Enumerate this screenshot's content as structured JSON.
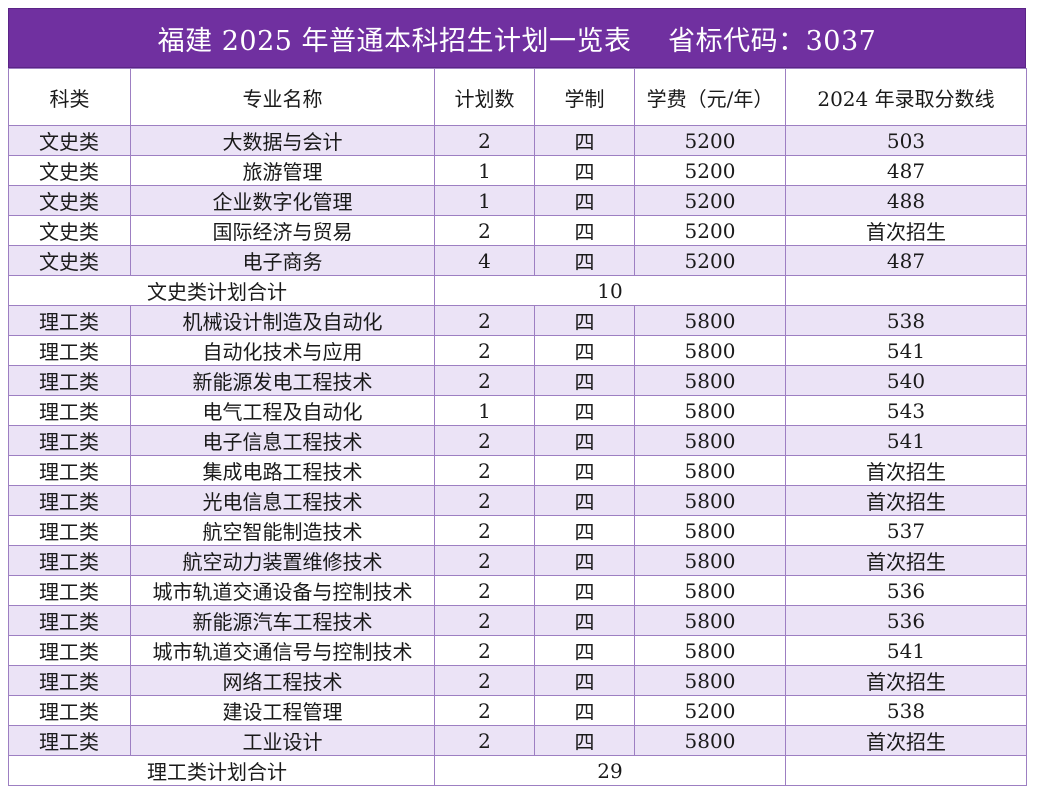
{
  "title": "福建 2025 年普通本科招生计划一览表　 省标代码：3037",
  "headers": [
    "科类",
    "专业名称",
    "计划数",
    "学制",
    "学费（元/年）",
    "2024 年录取分数线"
  ],
  "groups": [
    {
      "rows": [
        [
          "文史类",
          "大数据与会计",
          "2",
          "四",
          "5200",
          "503"
        ],
        [
          "文史类",
          "旅游管理",
          "1",
          "四",
          "5200",
          "487"
        ],
        [
          "文史类",
          "企业数字化管理",
          "1",
          "四",
          "5200",
          "488"
        ],
        [
          "文史类",
          "国际经济与贸易",
          "2",
          "四",
          "5200",
          "首次招生"
        ],
        [
          "文史类",
          "电子商务",
          "4",
          "四",
          "5200",
          "487"
        ]
      ],
      "subtotal_label": "文史类计划合计",
      "subtotal_value": "10"
    },
    {
      "rows": [
        [
          "理工类",
          "机械设计制造及自动化",
          "2",
          "四",
          "5800",
          "538"
        ],
        [
          "理工类",
          "自动化技术与应用",
          "2",
          "四",
          "5800",
          "541"
        ],
        [
          "理工类",
          "新能源发电工程技术",
          "2",
          "四",
          "5800",
          "540"
        ],
        [
          "理工类",
          "电气工程及自动化",
          "1",
          "四",
          "5800",
          "543"
        ],
        [
          "理工类",
          "电子信息工程技术",
          "2",
          "四",
          "5800",
          "541"
        ],
        [
          "理工类",
          "集成电路工程技术",
          "2",
          "四",
          "5800",
          "首次招生"
        ],
        [
          "理工类",
          "光电信息工程技术",
          "2",
          "四",
          "5800",
          "首次招生"
        ],
        [
          "理工类",
          "航空智能制造技术",
          "2",
          "四",
          "5800",
          "537"
        ],
        [
          "理工类",
          "航空动力装置维修技术",
          "2",
          "四",
          "5800",
          "首次招生"
        ],
        [
          "理工类",
          "城市轨道交通设备与控制技术",
          "2",
          "四",
          "5800",
          "536"
        ],
        [
          "理工类",
          "新能源汽车工程技术",
          "2",
          "四",
          "5800",
          "536"
        ],
        [
          "理工类",
          "城市轨道交通信号与控制技术",
          "2",
          "四",
          "5800",
          "541"
        ],
        [
          "理工类",
          "网络工程技术",
          "2",
          "四",
          "5800",
          "首次招生"
        ],
        [
          "理工类",
          "建设工程管理",
          "2",
          "四",
          "5200",
          "538"
        ],
        [
          "理工类",
          "工业设计",
          "2",
          "四",
          "5800",
          "首次招生"
        ]
      ],
      "subtotal_label": "理工类计划合计",
      "subtotal_value": "29"
    }
  ],
  "colors": {
    "title_bg": "#7030a0",
    "row_alt_bg": "#ebe3f6",
    "border": "#9d7fc2"
  }
}
